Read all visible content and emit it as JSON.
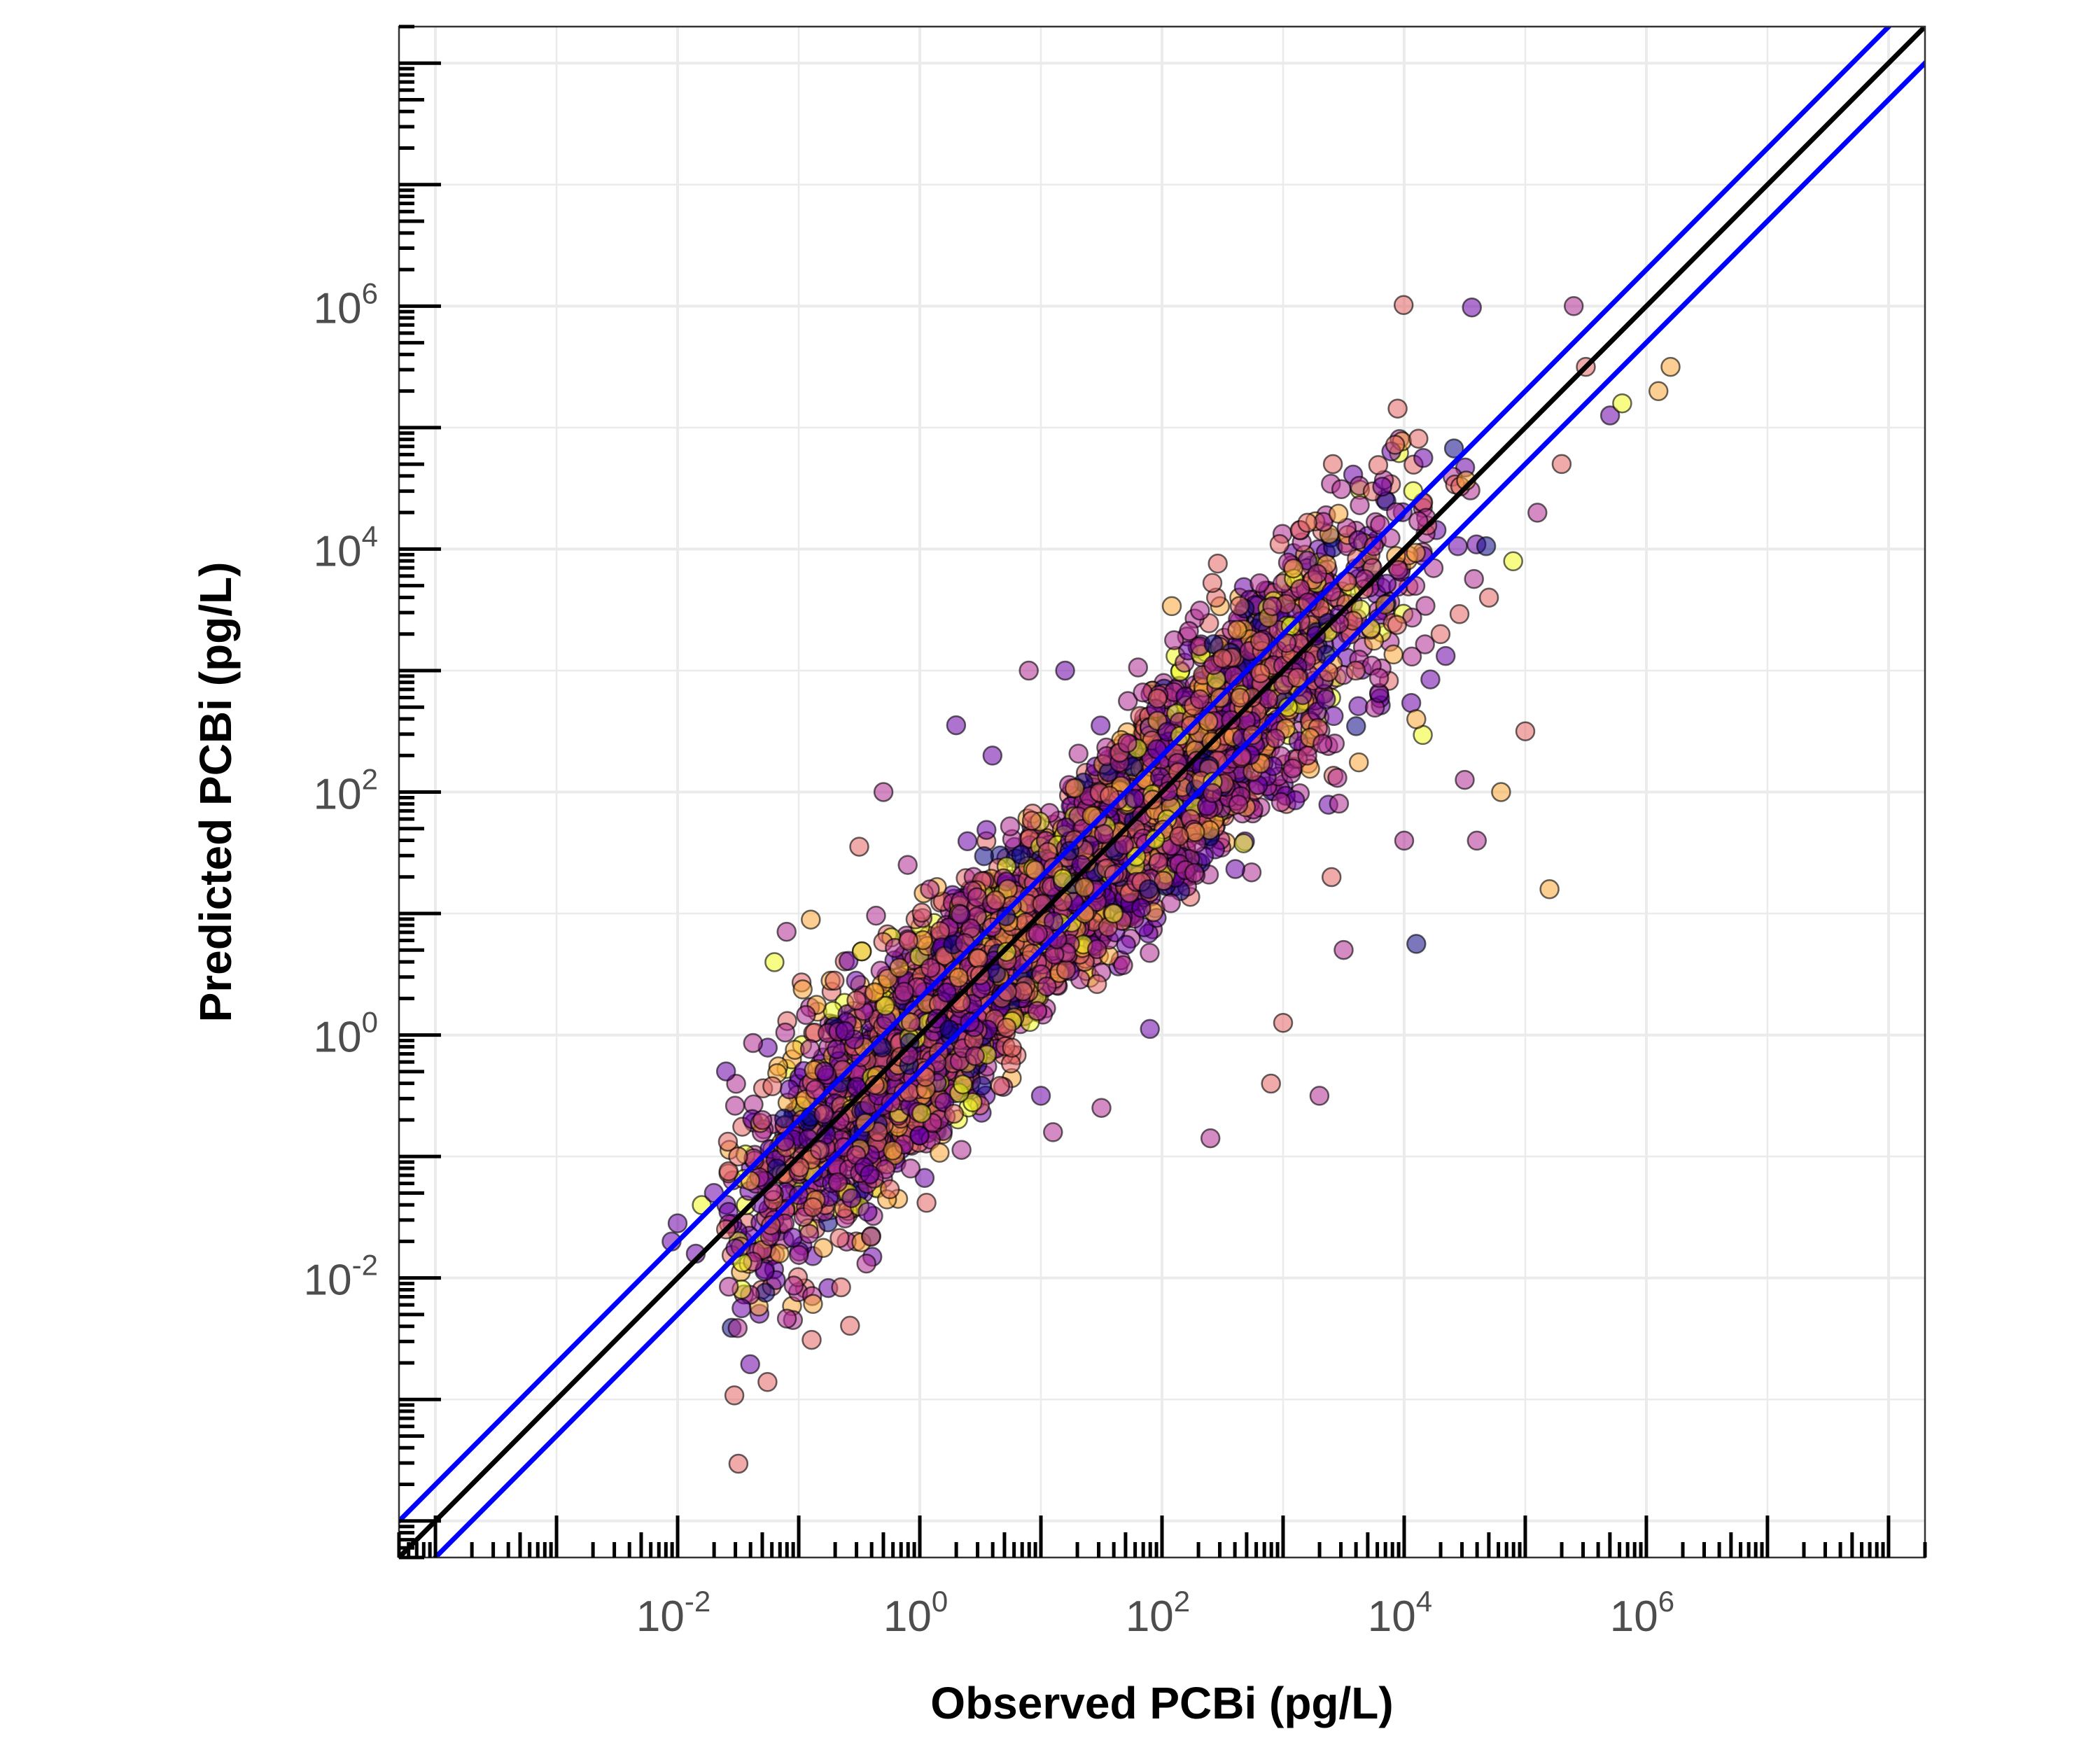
{
  "chart_data": {
    "type": "scatter",
    "title": "",
    "xlabel": "Observed PCBi (pg/L)",
    "ylabel": "Predicted PCBi (pg/L)",
    "x_scale": "log10",
    "y_scale": "log10",
    "xlim": [
      5e-05,
      200000000
    ],
    "ylim": [
      5e-05,
      200000000
    ],
    "x_ticks": [
      {
        "base": "10",
        "exp": "-2",
        "value": 0.01
      },
      {
        "base": "10",
        "exp": "0",
        "value": 1
      },
      {
        "base": "10",
        "exp": "2",
        "value": 100
      },
      {
        "base": "10",
        "exp": "4",
        "value": 10000
      },
      {
        "base": "10",
        "exp": "6",
        "value": 1000000
      }
    ],
    "y_ticks": [
      {
        "base": "10",
        "exp": "-2",
        "value": 0.01
      },
      {
        "base": "10",
        "exp": "0",
        "value": 1
      },
      {
        "base": "10",
        "exp": "2",
        "value": 100
      },
      {
        "base": "10",
        "exp": "4",
        "value": 10000
      },
      {
        "base": "10",
        "exp": "6",
        "value": 1000000
      }
    ],
    "grid": true,
    "legend": "none",
    "reference_lines": [
      {
        "name": "1:1 line",
        "color": "#000000",
        "log10_offset": 0
      },
      {
        "name": "upper bound",
        "color": "#0000ff",
        "log10_offset": 0.3
      },
      {
        "name": "lower bound",
        "color": "#0000ff",
        "log10_offset": -0.3
      }
    ],
    "point_colors": [
      "#0d0887",
      "#6a00a8",
      "#b12a90",
      "#e16462",
      "#fca636",
      "#f0f921"
    ],
    "cloud": {
      "approx_point_count": 6000,
      "log10_x_range": [
        -2,
        6.3
      ],
      "log10_y_range": [
        -2,
        6
      ],
      "note": "dense cloud of points around the 1:1 line"
    },
    "series": [
      {
        "values": [
          [
            -2.05,
            -1.7
          ],
          [
            -2.0,
            -1.55
          ],
          [
            -1.85,
            -1.8
          ],
          [
            -1.8,
            -1.4
          ],
          [
            -1.7,
            -1.3
          ],
          [
            -1.6,
            -1.6
          ],
          [
            -1.6,
            -0.3
          ],
          [
            -1.5,
            -1.0
          ],
          [
            -1.4,
            -1.2
          ],
          [
            -1.3,
            -0.7
          ],
          [
            -1.2,
            0.6
          ],
          [
            -1.1,
            0.85
          ],
          [
            -0.9,
            0.95
          ],
          [
            -0.5,
            1.55
          ],
          [
            -0.3,
            2.0
          ],
          [
            -0.1,
            1.4
          ],
          [
            0.3,
            2.55
          ],
          [
            0.6,
            2.3
          ],
          [
            0.9,
            3.0
          ],
          [
            1.0,
            -0.5
          ],
          [
            1.1,
            -0.8
          ],
          [
            1.2,
            3.0
          ],
          [
            1.5,
            -0.6
          ],
          [
            1.6,
            1.0
          ],
          [
            1.9,
            0.05
          ],
          [
            2.1,
            3.25
          ],
          [
            2.4,
            -0.85
          ],
          [
            2.5,
            3.1
          ],
          [
            2.9,
            -0.4
          ],
          [
            3.0,
            0.1
          ],
          [
            3.2,
            2.3
          ],
          [
            3.3,
            -0.5
          ],
          [
            3.4,
            1.3
          ],
          [
            3.5,
            0.7
          ],
          [
            3.6,
            3.0
          ],
          [
            3.8,
            4.2
          ],
          [
            4.0,
            1.6
          ],
          [
            4.1,
            0.75
          ],
          [
            4.1,
            2.6
          ],
          [
            4.3,
            3.3
          ],
          [
            4.5,
            2.1
          ],
          [
            4.6,
            1.6
          ],
          [
            4.7,
            3.6
          ],
          [
            4.8,
            2.0
          ],
          [
            4.9,
            3.9
          ],
          [
            5.0,
            2.5
          ],
          [
            5.1,
            4.3
          ],
          [
            5.2,
            1.2
          ],
          [
            5.3,
            4.7
          ],
          [
            5.4,
            6.0
          ],
          [
            5.5,
            5.5
          ],
          [
            5.7,
            5.1
          ],
          [
            5.8,
            5.2
          ],
          [
            6.1,
            5.3
          ],
          [
            6.2,
            5.5
          ]
        ]
      }
    ]
  }
}
